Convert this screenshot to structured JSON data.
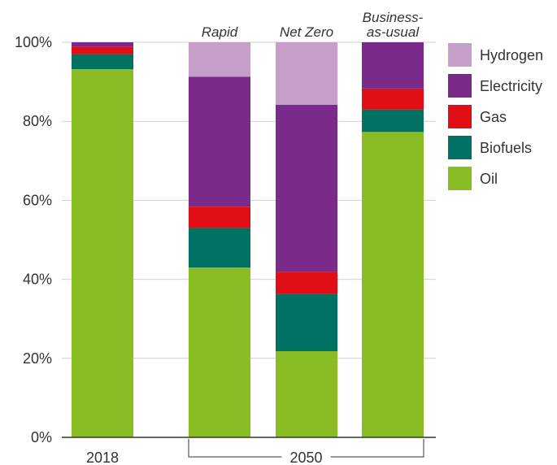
{
  "chart_data": {
    "type": "bar",
    "stacked": true,
    "categories": [
      "2018",
      "Rapid",
      "Net Zero",
      "Business-as-usual"
    ],
    "category_label_lines": [
      [],
      [
        "Rapid"
      ],
      [
        "Net Zero"
      ],
      [
        "Business-",
        "as-usual"
      ]
    ],
    "group_labels": [
      {
        "label": "2018",
        "categories": [
          "2018"
        ]
      },
      {
        "label": "2050",
        "categories": [
          "Rapid",
          "Net Zero",
          "Business-as-usual"
        ]
      }
    ],
    "series": [
      {
        "name": "Oil",
        "color": "#8ABD24",
        "values": [
          93.2,
          43.0,
          21.8,
          77.3
        ]
      },
      {
        "name": "Biofuels",
        "color": "#007163",
        "values": [
          3.8,
          10.0,
          14.6,
          5.7
        ]
      },
      {
        "name": "Gas",
        "color": "#E10E16",
        "values": [
          1.9,
          5.4,
          5.5,
          5.3
        ]
      },
      {
        "name": "Electricity",
        "color": "#7A2A8B",
        "values": [
          1.1,
          32.9,
          42.3,
          11.7
        ]
      },
      {
        "name": "Hydrogen",
        "color": "#C59FCA",
        "values": [
          0.0,
          8.7,
          15.8,
          0.0
        ]
      }
    ],
    "legend_order": [
      "Hydrogen",
      "Electricity",
      "Gas",
      "Biofuels",
      "Oil"
    ],
    "y_ticks": [
      "0%",
      "20%",
      "40%",
      "60%",
      "80%",
      "100%"
    ],
    "ylim": [
      0,
      100
    ],
    "grid": true,
    "legend_position": "right",
    "title": "",
    "xlabel": "",
    "ylabel": ""
  },
  "colors": {
    "grid": "#d0d0d0",
    "axis": "#333333",
    "text": "#333333"
  }
}
